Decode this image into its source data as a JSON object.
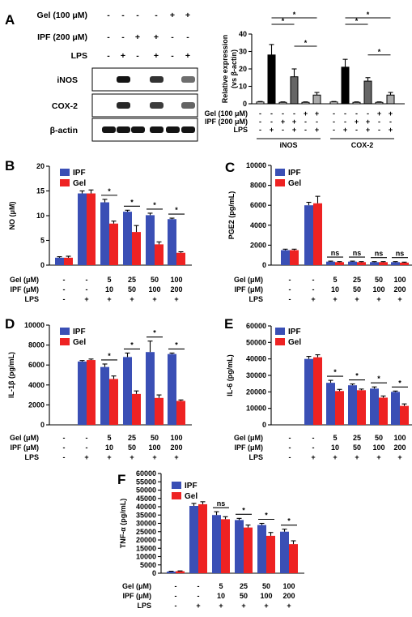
{
  "colors": {
    "ipf": "#3a4fb5",
    "gel": "#ee2222",
    "control": "#ffffff",
    "ink": "#000000"
  },
  "blot": {
    "panel_label": "A",
    "rows": [
      {
        "label": "Gel (100 μM)",
        "marks": [
          "-",
          "-",
          "-",
          "-",
          "+",
          "+"
        ]
      },
      {
        "label": "IPF (200 μM)",
        "marks": [
          "-",
          "-",
          "+",
          "+",
          "-",
          "-"
        ]
      },
      {
        "label": "LPS",
        "marks": [
          "-",
          "+",
          "-",
          "+",
          "-",
          "+"
        ]
      }
    ],
    "bands": [
      {
        "label": "iNOS",
        "intensities": [
          0.02,
          1.0,
          0.02,
          0.85,
          0.02,
          0.55
        ]
      },
      {
        "label": "COX-2",
        "intensities": [
          0.03,
          0.9,
          0.03,
          0.8,
          0.03,
          0.6
        ]
      },
      {
        "label": "β-actin",
        "intensities": [
          1.0,
          1.0,
          1.0,
          1.0,
          1.0,
          1.0
        ]
      }
    ]
  },
  "chart_data": [
    {
      "panel": "A",
      "type": "bar",
      "ylabel": "Relative expression\n(vs β-actin)",
      "ylim": [
        0,
        40
      ],
      "yticks": [
        0,
        10,
        20,
        30,
        40
      ],
      "groups": [
        "iNOS",
        "COX-2"
      ],
      "treatments": {
        "Gel (100 μM)": [
          "-",
          "-",
          "-",
          "-",
          "+",
          "+"
        ],
        "IPF (200 μM)": [
          "-",
          "-",
          "+",
          "+",
          "-",
          "-"
        ],
        "LPS": [
          "-",
          "+",
          "-",
          "+",
          "-",
          "+"
        ]
      },
      "bars": [
        {
          "group": "iNOS",
          "values": [
            1,
            28,
            0.8,
            15.5,
            0.8,
            5
          ],
          "errors": [
            0.3,
            6,
            0.3,
            4.5,
            0.3,
            1.5
          ],
          "fills": [
            "white",
            "black",
            "white",
            "gray",
            "white",
            "lightgray"
          ]
        },
        {
          "group": "COX-2",
          "values": [
            1,
            21,
            0.8,
            13,
            0.8,
            5
          ],
          "errors": [
            0.3,
            4.5,
            0.3,
            2,
            0.3,
            1.5
          ],
          "fills": [
            "white",
            "black",
            "white",
            "gray",
            "white",
            "lightgray"
          ]
        }
      ],
      "significance": [
        {
          "group": "iNOS",
          "from": 1,
          "to": 3,
          "label": "*"
        },
        {
          "group": "iNOS",
          "from": 1,
          "to": 5,
          "label": "*"
        },
        {
          "group": "iNOS",
          "from": 3,
          "to": 5,
          "label": "*"
        },
        {
          "group": "COX-2",
          "from": 1,
          "to": 3,
          "label": "*"
        },
        {
          "group": "COX-2",
          "from": 1,
          "to": 5,
          "label": "*"
        },
        {
          "group": "COX-2",
          "from": 3,
          "to": 5,
          "label": "*"
        }
      ]
    },
    {
      "panel": "B",
      "type": "bar",
      "ylabel": "NO (μM)",
      "ylim": [
        0,
        20
      ],
      "yticks": [
        0,
        5,
        10,
        15,
        20
      ],
      "legend": [
        "IPF",
        "Gel"
      ],
      "legend_position": "top-left",
      "conditions": {
        "Gel (μM)": [
          "-",
          "-",
          "5",
          "25",
          "50",
          "100"
        ],
        "IPF (μM)": [
          "-",
          "-",
          "10",
          "50",
          "100",
          "200"
        ],
        "LPS": [
          "-",
          "+",
          "+",
          "+",
          "+",
          "+"
        ]
      },
      "series": [
        {
          "name": "IPF",
          "values": [
            1.5,
            14.5,
            12.7,
            10.8,
            10.1,
            9.3
          ],
          "errors": [
            0.2,
            0.5,
            0.6,
            0.3,
            0.4,
            0.2
          ]
        },
        {
          "name": "Gel",
          "values": [
            1.5,
            14.5,
            8.4,
            6.7,
            4.2,
            2.5
          ],
          "errors": [
            0.3,
            0.7,
            0.5,
            1.3,
            0.5,
            0.2
          ]
        }
      ],
      "significance": [
        "",
        "",
        "*",
        "*",
        "*",
        "*"
      ]
    },
    {
      "panel": "C",
      "type": "bar",
      "ylabel": "PGE2 (pg/mL)",
      "ylim": [
        0,
        10000
      ],
      "yticks": [
        0,
        2000,
        4000,
        6000,
        8000,
        10000
      ],
      "legend": [
        "IPF",
        "Gel"
      ],
      "legend_position": "top-left",
      "conditions": {
        "Gel (μM)": [
          "-",
          "-",
          "5",
          "25",
          "50",
          "100"
        ],
        "IPF (μM)": [
          "-",
          "-",
          "10",
          "50",
          "100",
          "200"
        ],
        "LPS": [
          "-",
          "+",
          "+",
          "+",
          "+",
          "+"
        ]
      },
      "series": [
        {
          "name": "IPF",
          "values": [
            1500,
            6000,
            350,
            350,
            300,
            300
          ],
          "errors": [
            100,
            300,
            50,
            50,
            50,
            50
          ]
        },
        {
          "name": "Gel",
          "values": [
            1500,
            6200,
            300,
            300,
            300,
            250
          ],
          "errors": [
            100,
            700,
            50,
            50,
            50,
            50
          ]
        }
      ],
      "significance": [
        "",
        "",
        "ns",
        "ns",
        "ns",
        "ns"
      ]
    },
    {
      "panel": "D",
      "type": "bar",
      "ylabel": "IL-1β (pg/mL)",
      "ylim": [
        0,
        10000
      ],
      "yticks": [
        0,
        2000,
        4000,
        6000,
        8000,
        10000
      ],
      "legend": [
        "IPF",
        "Gel"
      ],
      "legend_position": "top-left",
      "conditions": {
        "Gel (μM)": [
          "-",
          "-",
          "5",
          "25",
          "50",
          "100"
        ],
        "IPF (μM)": [
          "-",
          "-",
          "10",
          "50",
          "100",
          "200"
        ],
        "LPS": [
          "-",
          "+",
          "+",
          "+",
          "+",
          "+"
        ]
      },
      "series": [
        {
          "name": "IPF",
          "values": [
            0,
            6350,
            5800,
            6800,
            7300,
            7100
          ],
          "errors": [
            0,
            100,
            300,
            400,
            1100,
            100
          ]
        },
        {
          "name": "Gel",
          "values": [
            0,
            6500,
            4600,
            3100,
            2700,
            2400
          ],
          "errors": [
            0,
            100,
            300,
            300,
            300,
            100
          ]
        }
      ],
      "significance": [
        "",
        "",
        "*",
        "*",
        "*",
        "*"
      ]
    },
    {
      "panel": "E",
      "type": "bar",
      "ylabel": "IL-6 (pg/mL)",
      "ylim": [
        0,
        60000
      ],
      "yticks": [
        0,
        10000,
        20000,
        30000,
        40000,
        50000,
        60000
      ],
      "legend": [
        "IPF",
        "Gel"
      ],
      "legend_position": "top-left",
      "conditions": {
        "Gel (μM)": [
          "-",
          "-",
          "5",
          "25",
          "50",
          "100"
        ],
        "IPF (μM)": [
          "-",
          "-",
          "10",
          "50",
          "100",
          "200"
        ],
        "LPS": [
          "-",
          "+",
          "+",
          "+",
          "+",
          "+"
        ]
      },
      "series": [
        {
          "name": "IPF",
          "values": [
            0,
            40000,
            25500,
            24000,
            22000,
            20000
          ],
          "errors": [
            0,
            1500,
            1500,
            800,
            1000,
            500
          ]
        },
        {
          "name": "Gel",
          "values": [
            0,
            41000,
            20500,
            21000,
            16500,
            11500
          ],
          "errors": [
            0,
            1500,
            1000,
            700,
            1000,
            1200
          ]
        }
      ],
      "significance": [
        "",
        "",
        "*",
        "*",
        "*",
        "*"
      ]
    },
    {
      "panel": "F",
      "type": "bar",
      "ylabel": "TNF-α (pg/mL)",
      "ylim": [
        0,
        60000
      ],
      "yticks": [
        0,
        5000,
        10000,
        15000,
        20000,
        25000,
        30000,
        35000,
        40000,
        45000,
        50000,
        55000,
        60000
      ],
      "legend": [
        "IPF",
        "Gel"
      ],
      "legend_position": "top-left",
      "conditions": {
        "Gel (μM)": [
          "-",
          "-",
          "5",
          "25",
          "50",
          "100"
        ],
        "IPF (μM)": [
          "-",
          "-",
          "10",
          "50",
          "100",
          "200"
        ],
        "LPS": [
          "-",
          "+",
          "+",
          "+",
          "+",
          "+"
        ]
      },
      "series": [
        {
          "name": "IPF",
          "values": [
            1000,
            40500,
            35000,
            32000,
            29000,
            25000
          ],
          "errors": [
            200,
            1500,
            2000,
            1000,
            1000,
            1500
          ]
        },
        {
          "name": "Gel",
          "values": [
            1200,
            41500,
            32500,
            27500,
            22500,
            17500
          ],
          "errors": [
            200,
            1500,
            1500,
            1500,
            2000,
            2000
          ]
        }
      ],
      "significance": [
        "",
        "",
        "ns",
        "*",
        "*",
        "*"
      ]
    }
  ]
}
